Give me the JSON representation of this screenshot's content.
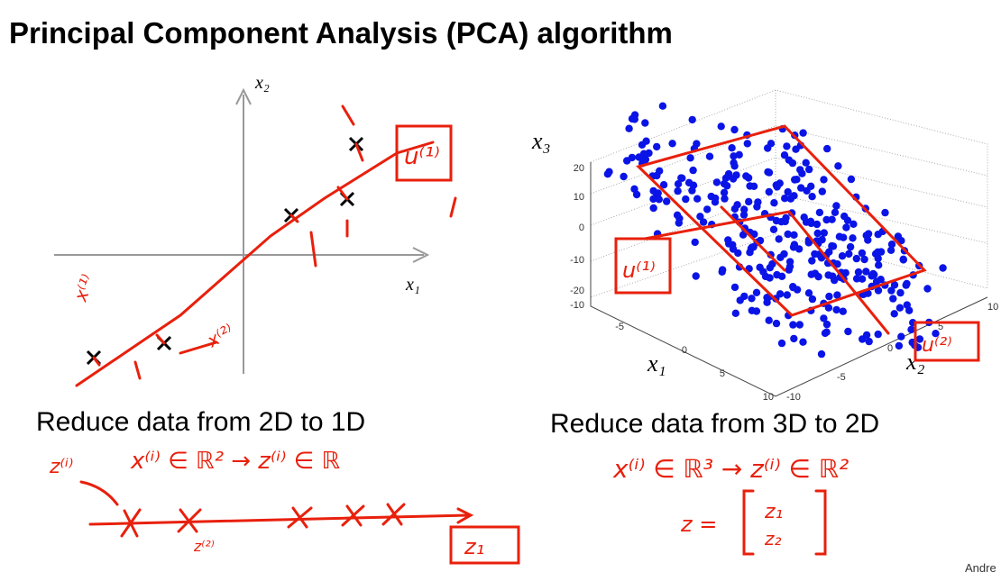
{
  "title": "Principal Component Analysis (PCA) algorithm",
  "left": {
    "y_axis_label": "x₂",
    "x_axis_label": "x₁",
    "caption": "Reduce data from 2D to 1D",
    "annotations": {
      "direction": "u⁽¹⁾",
      "point_1": "x⁽¹⁾",
      "point_2": "x⁽²⁾",
      "mapping_start": "z⁽ⁱ⁾",
      "mapping": "x⁽ⁱ⁾ ∈ ℝ² → z⁽ⁱ⁾ ∈ ℝ",
      "projection": "z⁽²⁾",
      "result": "z₁"
    }
  },
  "right": {
    "z_axis_label": "x₃",
    "x1_axis_label": "x₁",
    "x2_axis_label": "x₂",
    "z_ticks": [
      "20",
      "10",
      "0",
      "-10",
      "-20",
      "-10"
    ],
    "x1_ticks": [
      "-5",
      "0",
      "5",
      "10"
    ],
    "x2_ticks": [
      "-10",
      "-5",
      "0",
      "5",
      "10"
    ],
    "caption": "Reduce data from 3D to 2D",
    "annotations": {
      "direction_1": "u⁽¹⁾",
      "direction_2": "u⁽²⁾",
      "mapping": "x⁽ⁱ⁾ ∈ ℝ³ → z⁽ⁱ⁾ ∈ ℝ²",
      "vector_lhs": "z =",
      "z1": "z₁",
      "z2": "z₂"
    }
  },
  "footer": "Andre"
}
